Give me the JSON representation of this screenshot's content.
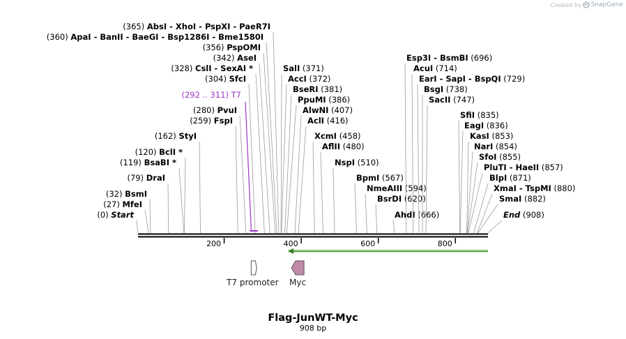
{
  "credit": {
    "prefix": "Created by",
    "brand": "SnapGene",
    "icon": "snapgene-logo-icon"
  },
  "title": "Flag-JunWT-Myc",
  "length_label": "908 bp",
  "sequence_length": 908,
  "axis_ticks": [
    {
      "value": 200,
      "label": "200"
    },
    {
      "value": 400,
      "label": "400"
    },
    {
      "value": 600,
      "label": "600"
    },
    {
      "value": 800,
      "label": "800"
    }
  ],
  "primer": {
    "pos_label": "(292 .. 311)",
    "name": "T7",
    "start": 292,
    "end": 311,
    "color": "#9b34c8"
  },
  "features": [
    {
      "name": "T7 promoter",
      "start": 290,
      "end": 308,
      "direction": "forward",
      "color": "#ffffff",
      "icon": "promoter-arrow-icon"
    },
    {
      "name": "Myc",
      "start": 380,
      "end": 409,
      "direction": "reverse",
      "color": "#c08aa6",
      "icon": "myc-tag-arrow-icon"
    }
  ],
  "orf": {
    "start": 380,
    "end": 908,
    "direction": "reverse",
    "color": "#7fd16a"
  },
  "sites": [
    {
      "pos_label": "(0)",
      "names": [
        "Start"
      ],
      "pos": 0,
      "italic": true
    },
    {
      "pos_label": "(27)",
      "names": [
        "MfeI"
      ],
      "pos": 27
    },
    {
      "pos_label": "(32)",
      "names": [
        "BsmI"
      ],
      "pos": 32
    },
    {
      "pos_label": "(79)",
      "names": [
        "DraI"
      ],
      "pos": 79
    },
    {
      "pos_label": "(119)",
      "names": [
        "BsaBI *"
      ],
      "pos": 119
    },
    {
      "pos_label": "(120)",
      "names": [
        "BclI *"
      ],
      "pos": 120
    },
    {
      "pos_label": "(162)",
      "names": [
        "StyI"
      ],
      "pos": 162
    },
    {
      "pos_label": "(259)",
      "names": [
        "FspI"
      ],
      "pos": 259
    },
    {
      "pos_label": "(280)",
      "names": [
        "PvuI"
      ],
      "pos": 280
    },
    {
      "pos_label": "(304)",
      "names": [
        "SfcI"
      ],
      "pos": 304
    },
    {
      "pos_label": "(328)",
      "names": [
        "CslI",
        "SexAI *"
      ],
      "pos": 328
    },
    {
      "pos_label": "(342)",
      "names": [
        "AseI"
      ],
      "pos": 342
    },
    {
      "pos_label": "(356)",
      "names": [
        "PspOMI"
      ],
      "pos": 356
    },
    {
      "pos_label": "(360)",
      "names": [
        "ApaI",
        "BanII",
        "BaeGI",
        "Bsp1286I",
        "Bme1580I"
      ],
      "pos": 360
    },
    {
      "pos_label": "(365)",
      "names": [
        "AbsI",
        "XhoI",
        "PspXI",
        "PaeR7I"
      ],
      "pos": 365
    },
    {
      "pos_label": "(371)",
      "names": [
        "SalI"
      ],
      "pos": 371,
      "side": "right"
    },
    {
      "pos_label": "(372)",
      "names": [
        "AccI"
      ],
      "pos": 372,
      "side": "right"
    },
    {
      "pos_label": "(381)",
      "names": [
        "BseRI"
      ],
      "pos": 381,
      "side": "right"
    },
    {
      "pos_label": "(386)",
      "names": [
        "PpuMI"
      ],
      "pos": 386,
      "side": "right"
    },
    {
      "pos_label": "(407)",
      "names": [
        "AlwNI"
      ],
      "pos": 407,
      "side": "right"
    },
    {
      "pos_label": "(416)",
      "names": [
        "AclI"
      ],
      "pos": 416,
      "side": "right"
    },
    {
      "pos_label": "(458)",
      "names": [
        "XcmI"
      ],
      "pos": 458,
      "side": "right"
    },
    {
      "pos_label": "(480)",
      "names": [
        "AflII"
      ],
      "pos": 480,
      "side": "right"
    },
    {
      "pos_label": "(510)",
      "names": [
        "NspI"
      ],
      "pos": 510,
      "side": "right"
    },
    {
      "pos_label": "(567)",
      "names": [
        "BpmI"
      ],
      "pos": 567,
      "side": "right"
    },
    {
      "pos_label": "(594)",
      "names": [
        "NmeAIII"
      ],
      "pos": 594,
      "side": "right"
    },
    {
      "pos_label": "(620)",
      "names": [
        "BsrDI"
      ],
      "pos": 620,
      "side": "right"
    },
    {
      "pos_label": "(666)",
      "names": [
        "AhdI"
      ],
      "pos": 666,
      "side": "right"
    },
    {
      "pos_label": "(696)",
      "names": [
        "Esp3I",
        "BsmBI"
      ],
      "pos": 696,
      "side": "right"
    },
    {
      "pos_label": "(714)",
      "names": [
        "AcuI"
      ],
      "pos": 714,
      "side": "right"
    },
    {
      "pos_label": "(729)",
      "names": [
        "EarI",
        "SapI",
        "BspQI"
      ],
      "pos": 729,
      "side": "right"
    },
    {
      "pos_label": "(738)",
      "names": [
        "BsgI"
      ],
      "pos": 738,
      "side": "right"
    },
    {
      "pos_label": "(747)",
      "names": [
        "SacII"
      ],
      "pos": 747,
      "side": "right"
    },
    {
      "pos_label": "(835)",
      "names": [
        "SfiI"
      ],
      "pos": 835,
      "side": "right"
    },
    {
      "pos_label": "(836)",
      "names": [
        "EagI"
      ],
      "pos": 836,
      "side": "right"
    },
    {
      "pos_label": "(853)",
      "names": [
        "KasI"
      ],
      "pos": 853,
      "side": "right"
    },
    {
      "pos_label": "(854)",
      "names": [
        "NarI"
      ],
      "pos": 854,
      "side": "right"
    },
    {
      "pos_label": "(855)",
      "names": [
        "SfoI"
      ],
      "pos": 855,
      "side": "right"
    },
    {
      "pos_label": "(857)",
      "names": [
        "PluTI",
        "HaeII"
      ],
      "pos": 857,
      "side": "right"
    },
    {
      "pos_label": "(871)",
      "names": [
        "BlpI"
      ],
      "pos": 871,
      "side": "right"
    },
    {
      "pos_label": "(880)",
      "names": [
        "XmaI",
        "TspMI"
      ],
      "pos": 880,
      "side": "right"
    },
    {
      "pos_label": "(882)",
      "names": [
        "SmaI"
      ],
      "pos": 882,
      "side": "right"
    },
    {
      "pos_label": "(908)",
      "names": [
        "End"
      ],
      "pos": 908,
      "side": "right",
      "italic": true
    }
  ]
}
